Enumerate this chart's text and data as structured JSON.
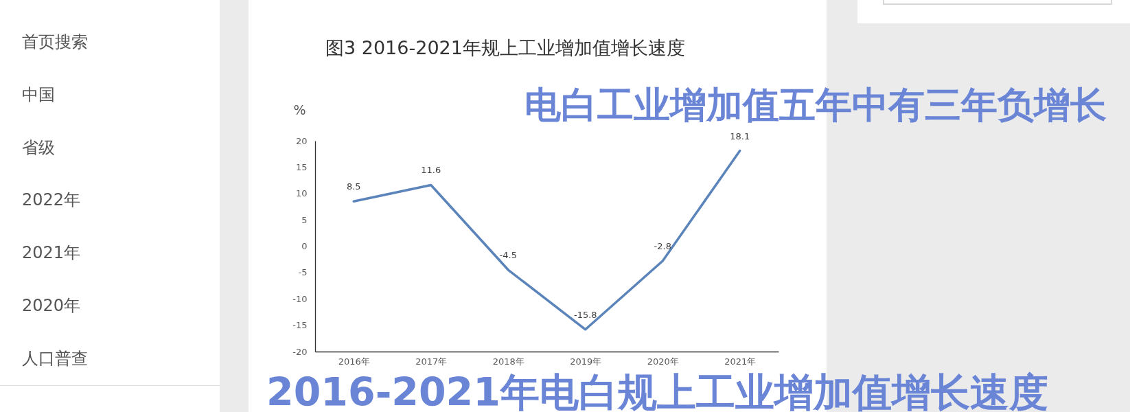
{
  "chart_data": {
    "type": "line",
    "title": "图3  2016-2021年规上工业增加值增长速度",
    "ylabel": "%",
    "categories": [
      "2016年",
      "2017年",
      "2018年",
      "2019年",
      "2020年",
      "2021年"
    ],
    "series": [
      {
        "color": "#5a84ba",
        "values": [
          8.5,
          11.6,
          -4.5,
          -15.8,
          -2.8,
          18.1
        ]
      }
    ],
    "ylim": [
      -20,
      20
    ],
    "yticks": [
      -20,
      -15,
      -10,
      -5,
      0,
      5,
      10,
      15,
      20
    ],
    "data_labels": true,
    "annotations": [
      "电白工业增加值五年中有三年负增长",
      "2016-2021年电白规上工业增加值增长速度",
      "首页搜索",
      "中国",
      "省级",
      "2022年",
      "2021年",
      "2020年",
      "人口普查"
    ]
  }
}
